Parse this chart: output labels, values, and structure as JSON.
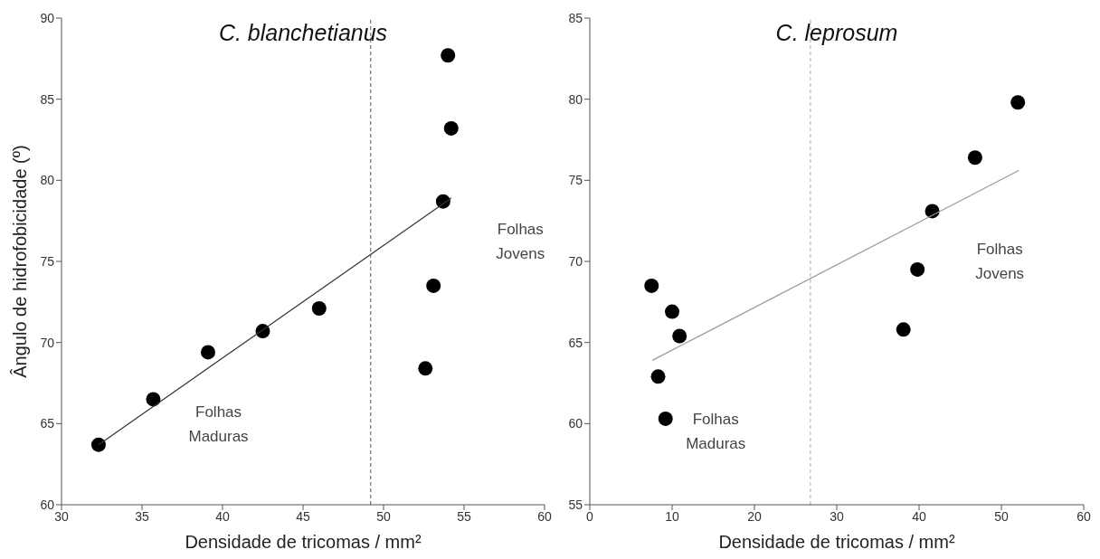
{
  "chart_data": [
    {
      "type": "scatter",
      "title": "C. blanchetianus",
      "xlabel": "Densidade de tricomas / mm²",
      "ylabel": "Ângulo de hidrofobicidade (º)",
      "xlim": [
        30,
        60
      ],
      "xticks": [
        30,
        35,
        40,
        45,
        50,
        55,
        60
      ],
      "ylim": [
        60,
        90
      ],
      "yticks": [
        60,
        65,
        70,
        75,
        80,
        85,
        90
      ],
      "series": [
        {
          "color": "#000000",
          "marker": "circle",
          "x": [
            32.3,
            35.7,
            39.1,
            42.5,
            46.0,
            52.6,
            53.1,
            53.7,
            54.2,
            54.0
          ],
          "values": [
            63.7,
            66.5,
            69.4,
            70.7,
            72.1,
            68.4,
            73.5,
            78.7,
            83.2,
            87.7
          ]
        },
        {
          "type": "line",
          "color": "#333333",
          "x": [
            32.3,
            54.2
          ],
          "values": [
            63.7,
            78.9
          ]
        }
      ],
      "ref_lines": [
        {
          "axis": "x",
          "value": 49.2,
          "color": "#555555",
          "line_style": "dashed"
        }
      ],
      "annotations": [
        "Folhas Maduras",
        "Folhas Jovens"
      ]
    },
    {
      "type": "scatter",
      "title": "C. leprosum",
      "xlabel": "Densidade de tricomas / mm²",
      "xlim": [
        0,
        60
      ],
      "xticks": [
        0,
        10,
        20,
        30,
        40,
        50,
        60
      ],
      "ylim": [
        55,
        85
      ],
      "yticks": [
        55,
        60,
        65,
        70,
        75,
        80,
        85
      ],
      "series": [
        {
          "color": "#000000",
          "marker": "circle",
          "x": [
            7.5,
            10.0,
            10.9,
            8.3,
            9.2,
            38.1,
            39.8,
            41.6,
            46.8,
            52.0
          ],
          "values": [
            68.5,
            66.9,
            65.4,
            62.9,
            60.3,
            65.8,
            69.5,
            73.1,
            76.4,
            79.8
          ]
        },
        {
          "type": "line",
          "color": "#999999",
          "x": [
            7.6,
            52.1
          ],
          "values": [
            63.9,
            75.6
          ]
        }
      ],
      "ref_lines": [
        {
          "axis": "x",
          "value": 26.8,
          "color": "#aaaaaa",
          "line_style": "dashed"
        }
      ],
      "annotations": [
        "Folhas Maduras",
        "Folhas Jovens"
      ]
    }
  ]
}
